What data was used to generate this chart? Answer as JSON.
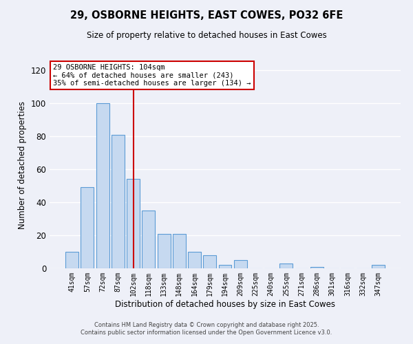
{
  "title_line1": "29, OSBORNE HEIGHTS, EAST COWES, PO32 6FE",
  "title_line2": "Size of property relative to detached houses in East Cowes",
  "xlabel": "Distribution of detached houses by size in East Cowes",
  "ylabel": "Number of detached properties",
  "categories": [
    "41sqm",
    "57sqm",
    "72sqm",
    "87sqm",
    "102sqm",
    "118sqm",
    "133sqm",
    "148sqm",
    "164sqm",
    "179sqm",
    "194sqm",
    "209sqm",
    "225sqm",
    "240sqm",
    "255sqm",
    "271sqm",
    "286sqm",
    "301sqm",
    "316sqm",
    "332sqm",
    "347sqm"
  ],
  "values": [
    10,
    49,
    100,
    81,
    54,
    35,
    21,
    21,
    10,
    8,
    2,
    5,
    0,
    0,
    3,
    0,
    1,
    0,
    0,
    0,
    2
  ],
  "bar_color": "#c6d9f0",
  "bar_edge_color": "#5b9bd5",
  "highlight_line_color": "#cc0000",
  "ylim": [
    0,
    125
  ],
  "yticks": [
    0,
    20,
    40,
    60,
    80,
    100,
    120
  ],
  "annotation_line1": "29 OSBORNE HEIGHTS: 104sqm",
  "annotation_line2": "← 64% of detached houses are smaller (243)",
  "annotation_line3": "35% of semi-detached houses are larger (134) →",
  "background_color": "#eef0f8",
  "grid_color": "#ffffff",
  "footer_line1": "Contains HM Land Registry data © Crown copyright and database right 2025.",
  "footer_line2": "Contains public sector information licensed under the Open Government Licence v3.0."
}
